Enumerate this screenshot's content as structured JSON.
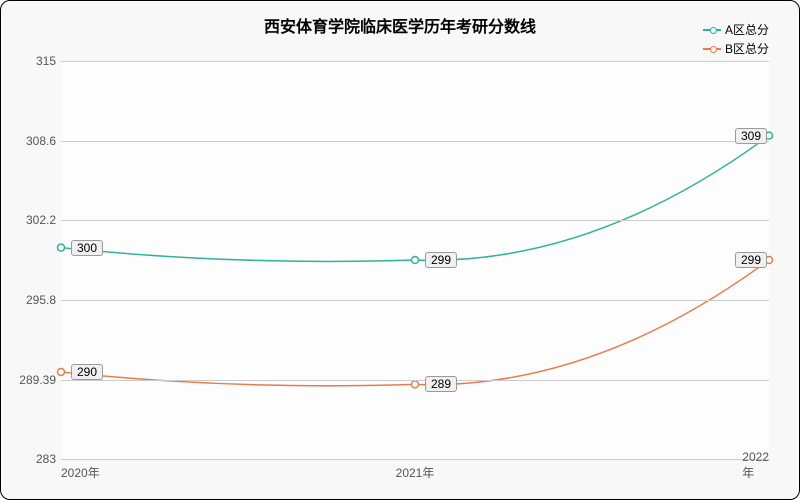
{
  "chart": {
    "type": "line",
    "title": "西安体育学院临床医学历年考研分数线",
    "title_fontsize": 16,
    "background_color": "#f8f8f8",
    "plot_background": "#fdfdfd",
    "border_color": "#000000",
    "grid_color": "#cccccc",
    "label_fontsize": 12,
    "x": {
      "categories": [
        "2020年",
        "2021年",
        "2022年"
      ]
    },
    "y": {
      "min": 283,
      "max": 315,
      "ticks": [
        283,
        289.39,
        295.8,
        302.2,
        308.6,
        315
      ],
      "tick_labels": [
        "283",
        "289.39",
        "295.8",
        "302.2",
        "308.6",
        "315"
      ]
    },
    "series": [
      {
        "name": "A区总分",
        "color": "#2db39a",
        "values": [
          300,
          299,
          309
        ],
        "labels": [
          "300",
          "299",
          "309"
        ],
        "smooth": true,
        "marker": "hollow-circle"
      },
      {
        "name": "B区总分",
        "color": "#e87b4c",
        "values": [
          290,
          289,
          299
        ],
        "labels": [
          "290",
          "289",
          "299"
        ],
        "smooth": true,
        "marker": "hollow-circle"
      }
    ],
    "legend": {
      "position": "top-right"
    }
  }
}
